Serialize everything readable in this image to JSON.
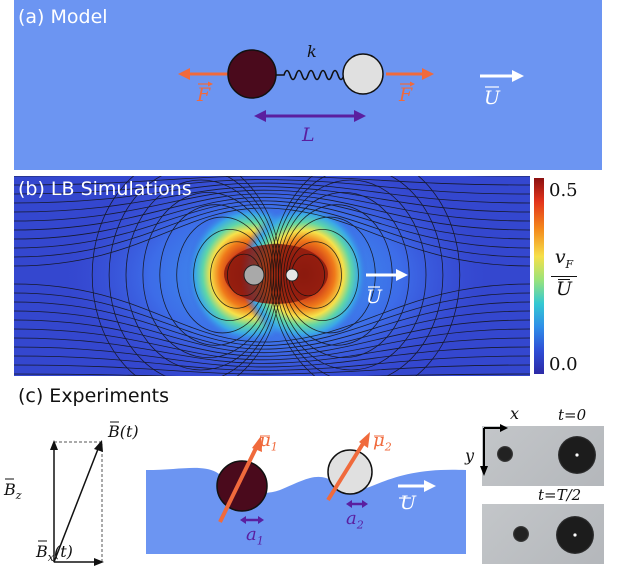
{
  "panels": {
    "a": {
      "title": "(a) Model",
      "spring_label": "k",
      "force_left": "F",
      "force_right": "F",
      "velocity_label": "U",
      "length_label": "L"
    },
    "b": {
      "title": "(b) LB Simulations",
      "velocity_label": "U",
      "colorbar": {
        "max_label": "0.5",
        "min_label": "0.0",
        "numerator": "v",
        "numerator_sub": "F",
        "denominator": "U"
      }
    },
    "c": {
      "title": "(c) Experiments",
      "field_label": "B(t)",
      "bz_label": "B",
      "bz_sub": "z",
      "bx_label": "B",
      "bx_sub": "x",
      "bx_suffix": "(t)",
      "mu1": "μ",
      "mu1_sub": "1",
      "mu2": "μ",
      "mu2_sub": "2",
      "a1": "a",
      "a1_sub": "1",
      "a2": "a",
      "a2_sub": "2",
      "velocity_label": "U",
      "axis_x": "x",
      "axis_y": "y",
      "time_top": "t=0",
      "time_bottom": "t=T/2"
    }
  },
  "colors": {
    "panel_a_bg": "#6b94f2",
    "force_arrow": "#f06a3c",
    "length_arrow": "#5a1fa0",
    "bead_dark": "#4a0a1c",
    "bead_light": "#e0e0e0",
    "fluid": "#6b94f2"
  }
}
